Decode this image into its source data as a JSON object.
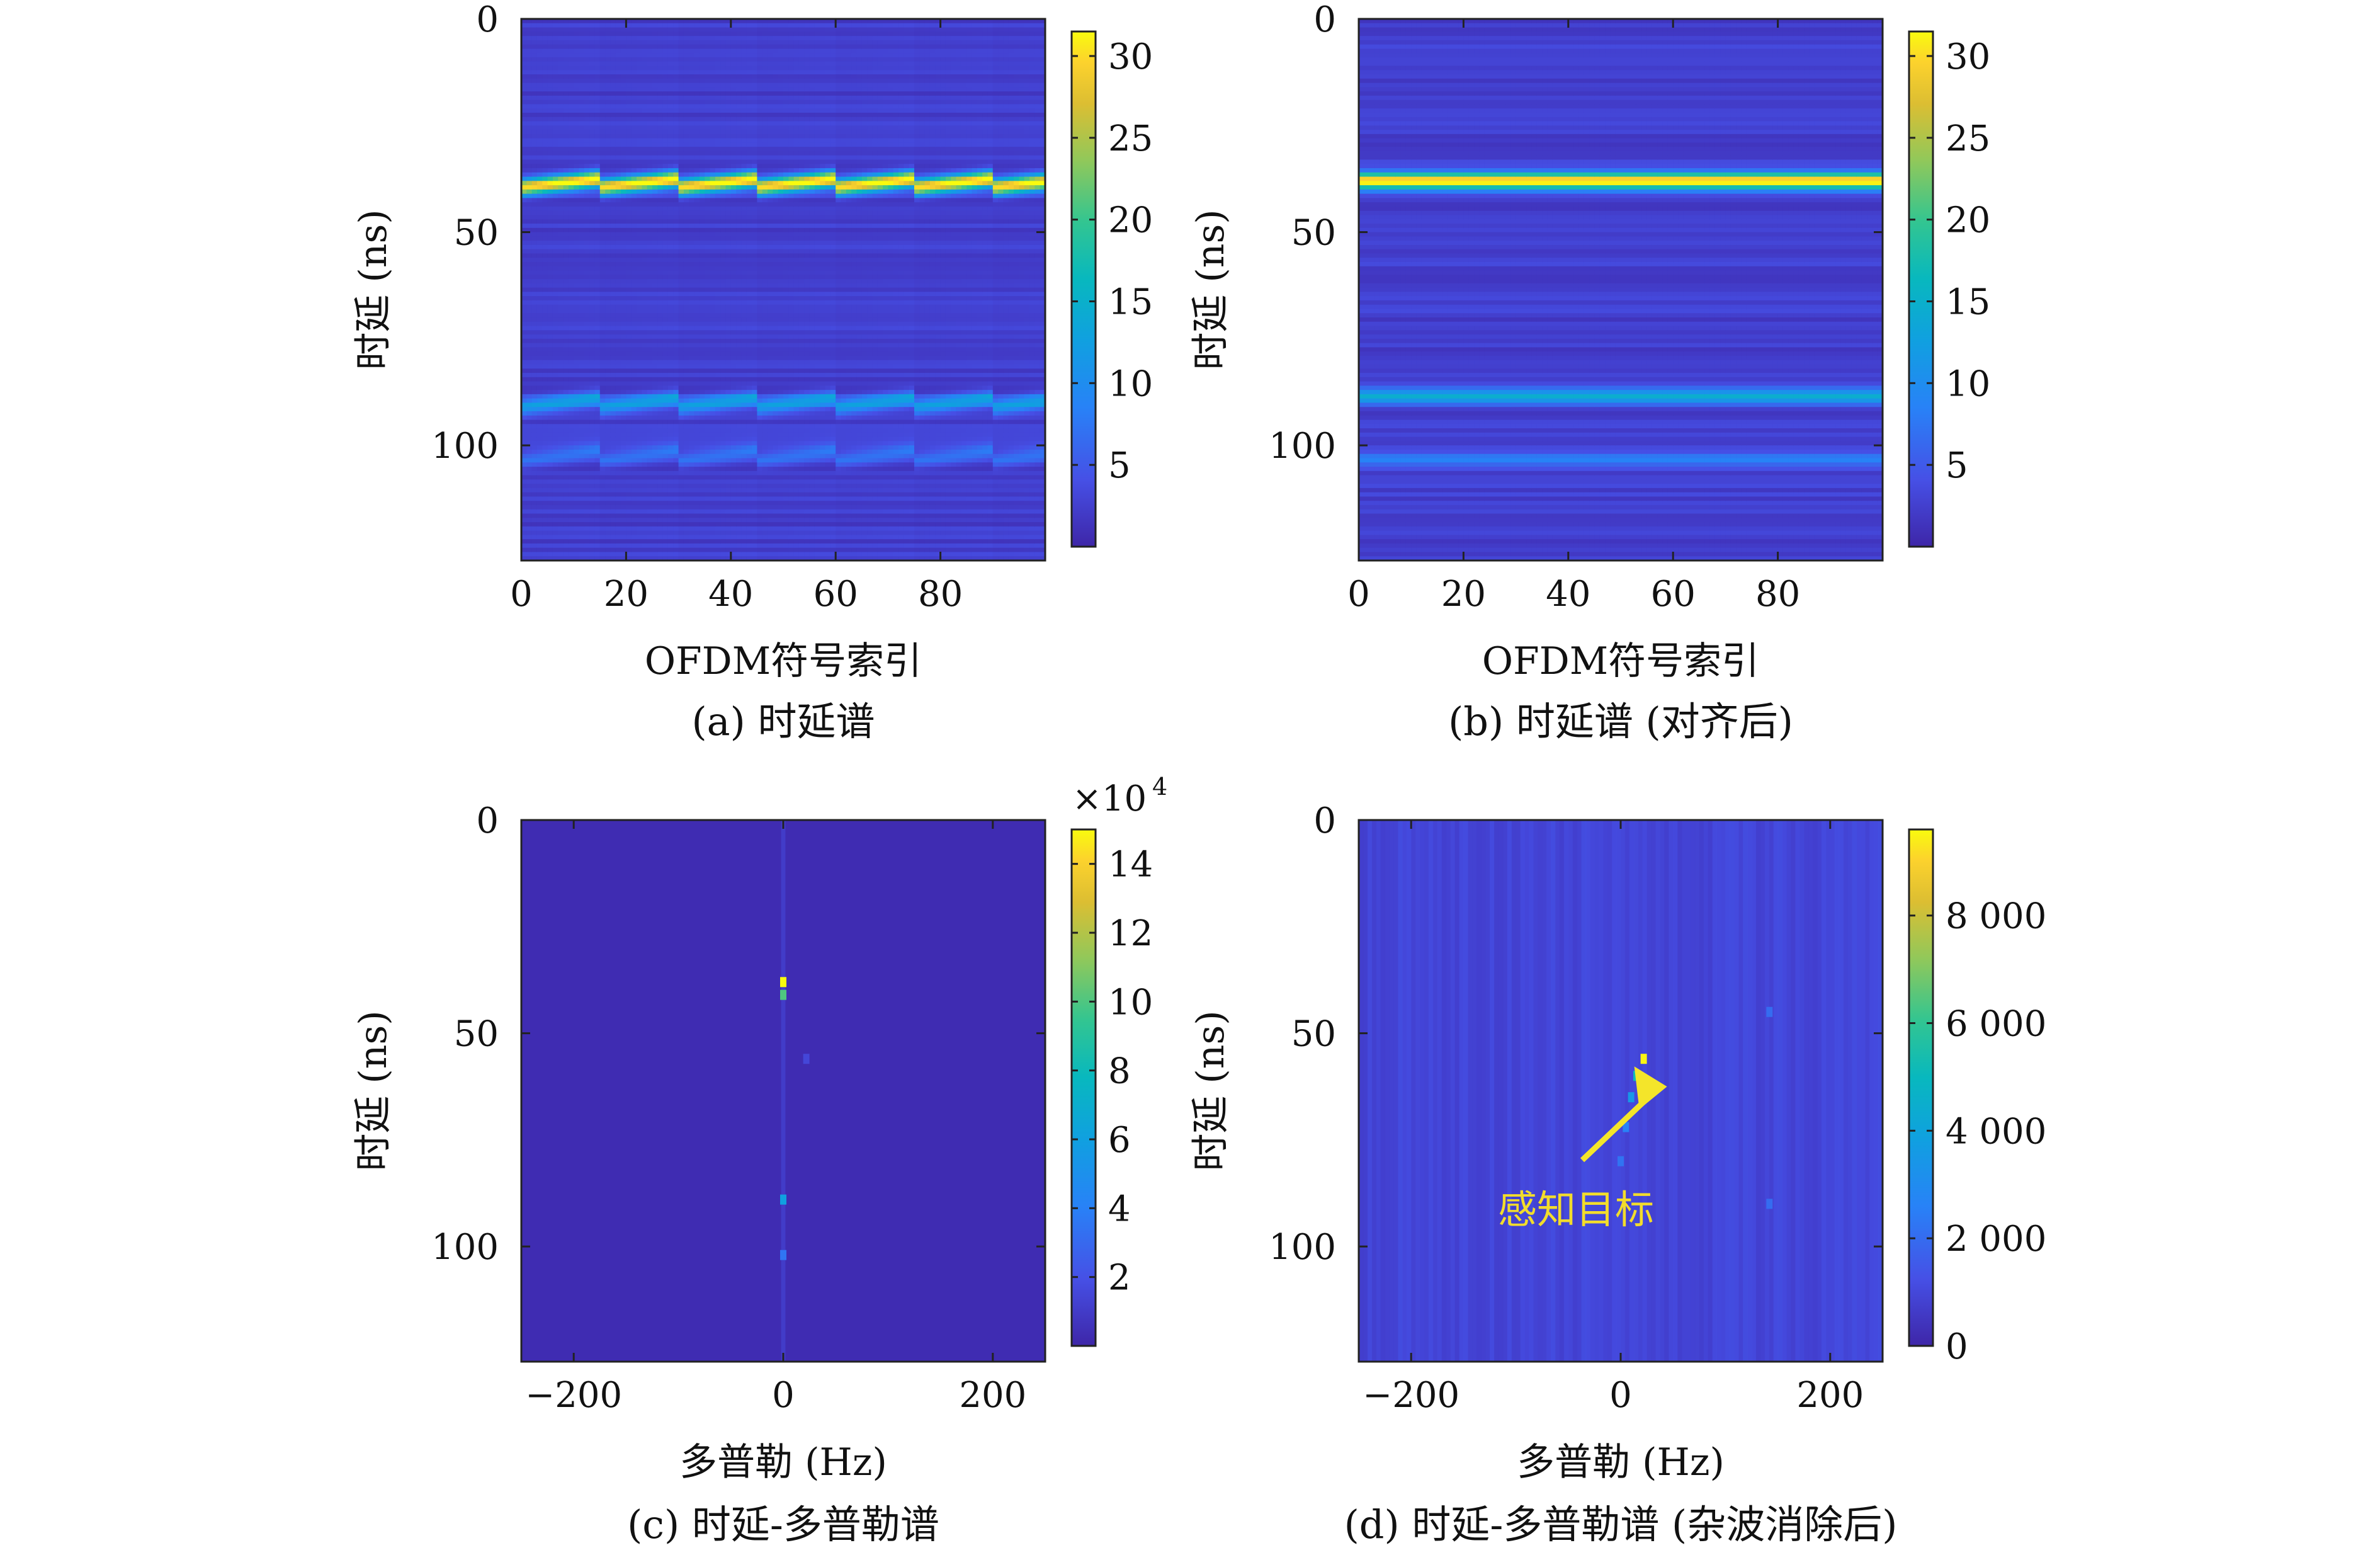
{
  "chart_data": [
    {
      "panel": "a",
      "type": "heatmap",
      "caption": "(a) 时延谱",
      "xlabel": "OFDM符号索引",
      "ylabel": "时延 (ns)",
      "x_ticks": [
        "0",
        "20",
        "40",
        "60",
        "80"
      ],
      "y_ticks": [
        "0",
        "50",
        "100"
      ],
      "xlim": [
        0,
        100
      ],
      "ylim": [
        0,
        127
      ],
      "y_reversed": true,
      "colorbar_ticks": [
        "5",
        "10",
        "15",
        "20",
        "25",
        "30"
      ],
      "colorbar_range": [
        0,
        31.5
      ],
      "colormap": "parula",
      "background_level": 2.5,
      "features": [
        {
          "kind": "sawtooth-line",
          "delay_start": 39,
          "slope_per_symbol": -0.14,
          "period_symbols": 15,
          "level": 30
        },
        {
          "kind": "sawtooth-line",
          "delay_start": 90.5,
          "slope_per_symbol": -0.14,
          "period_symbols": 15,
          "level": 11
        },
        {
          "kind": "sawtooth-line",
          "delay_start": 103,
          "slope_per_symbol": -0.14,
          "period_symbols": 15,
          "level": 6
        }
      ]
    },
    {
      "panel": "b",
      "type": "heatmap",
      "caption": "(b) 时延谱 (对齐后)",
      "xlabel": "OFDM符号索引",
      "ylabel": "时延 (ns)",
      "x_ticks": [
        "0",
        "20",
        "40",
        "60",
        "80"
      ],
      "y_ticks": [
        "0",
        "50",
        "100"
      ],
      "xlim": [
        0,
        100
      ],
      "ylim": [
        0,
        127
      ],
      "y_reversed": true,
      "colorbar_ticks": [
        "5",
        "10",
        "15",
        "20",
        "25",
        "30"
      ],
      "colorbar_range": [
        0,
        31.5
      ],
      "colormap": "parula",
      "background_level": 2.5,
      "features": [
        {
          "kind": "line",
          "delay": 37.5,
          "level": 30
        },
        {
          "kind": "line",
          "delay": 88,
          "level": 11
        },
        {
          "kind": "line",
          "delay": 103,
          "level": 6
        }
      ]
    },
    {
      "panel": "c",
      "type": "heatmap",
      "caption": "(c) 时延-多普勒谱",
      "xlabel": "多普勒 (Hz)",
      "ylabel": "时延 (ns)",
      "x_ticks": [
        "−200",
        "0",
        "200"
      ],
      "y_ticks": [
        "0",
        "50",
        "100"
      ],
      "xlim": [
        -250,
        250
      ],
      "ylim": [
        0,
        127
      ],
      "y_reversed": true,
      "colorbar_ticks": [
        "2",
        "4",
        "6",
        "8",
        "10",
        "12",
        "14"
      ],
      "colorbar_multiplier": "×10",
      "colorbar_exponent": "4",
      "colorbar_range": [
        0,
        15
      ],
      "colormap": "parula",
      "background_level": 0.3,
      "features": [
        {
          "kind": "spot",
          "doppler": 0,
          "delay": 38,
          "level": 15
        },
        {
          "kind": "spot",
          "doppler": 0,
          "delay": 41,
          "level": 10
        },
        {
          "kind": "spot",
          "doppler": 0,
          "delay": 89,
          "level": 6
        },
        {
          "kind": "spot",
          "doppler": 0,
          "delay": 102,
          "level": 3.5
        },
        {
          "kind": "spot",
          "doppler": 22,
          "delay": 56,
          "level": 1.5
        }
      ]
    },
    {
      "panel": "d",
      "type": "heatmap",
      "caption": "(d) 时延-多普勒谱 (杂波消除后)",
      "xlabel": "多普勒 (Hz)",
      "ylabel": "时延 (ns)",
      "x_ticks": [
        "−200",
        "0",
        "200"
      ],
      "y_ticks": [
        "0",
        "50",
        "100"
      ],
      "xlim": [
        -250,
        250
      ],
      "ylim": [
        0,
        127
      ],
      "y_reversed": true,
      "colorbar_ticks": [
        "0",
        "2 000",
        "4 000",
        "6 000",
        "8 000"
      ],
      "colorbar_range": [
        0,
        9600
      ],
      "colormap": "parula",
      "background_level": 900,
      "annotation": {
        "text": "感知目标",
        "doppler": 22,
        "delay": 56
      },
      "features": [
        {
          "kind": "spot",
          "doppler": 22,
          "delay": 56,
          "level": 9500
        },
        {
          "kind": "spot",
          "doppler": 15,
          "delay": 60,
          "level": 5200
        },
        {
          "kind": "spot",
          "doppler": 10,
          "delay": 65,
          "level": 3500
        },
        {
          "kind": "spot",
          "doppler": 5,
          "delay": 72,
          "level": 2600
        },
        {
          "kind": "spot",
          "doppler": 0,
          "delay": 80,
          "level": 2200
        },
        {
          "kind": "spot",
          "doppler": 142,
          "delay": 45,
          "level": 2000
        },
        {
          "kind": "spot",
          "doppler": 142,
          "delay": 90,
          "level": 2000
        }
      ]
    }
  ]
}
